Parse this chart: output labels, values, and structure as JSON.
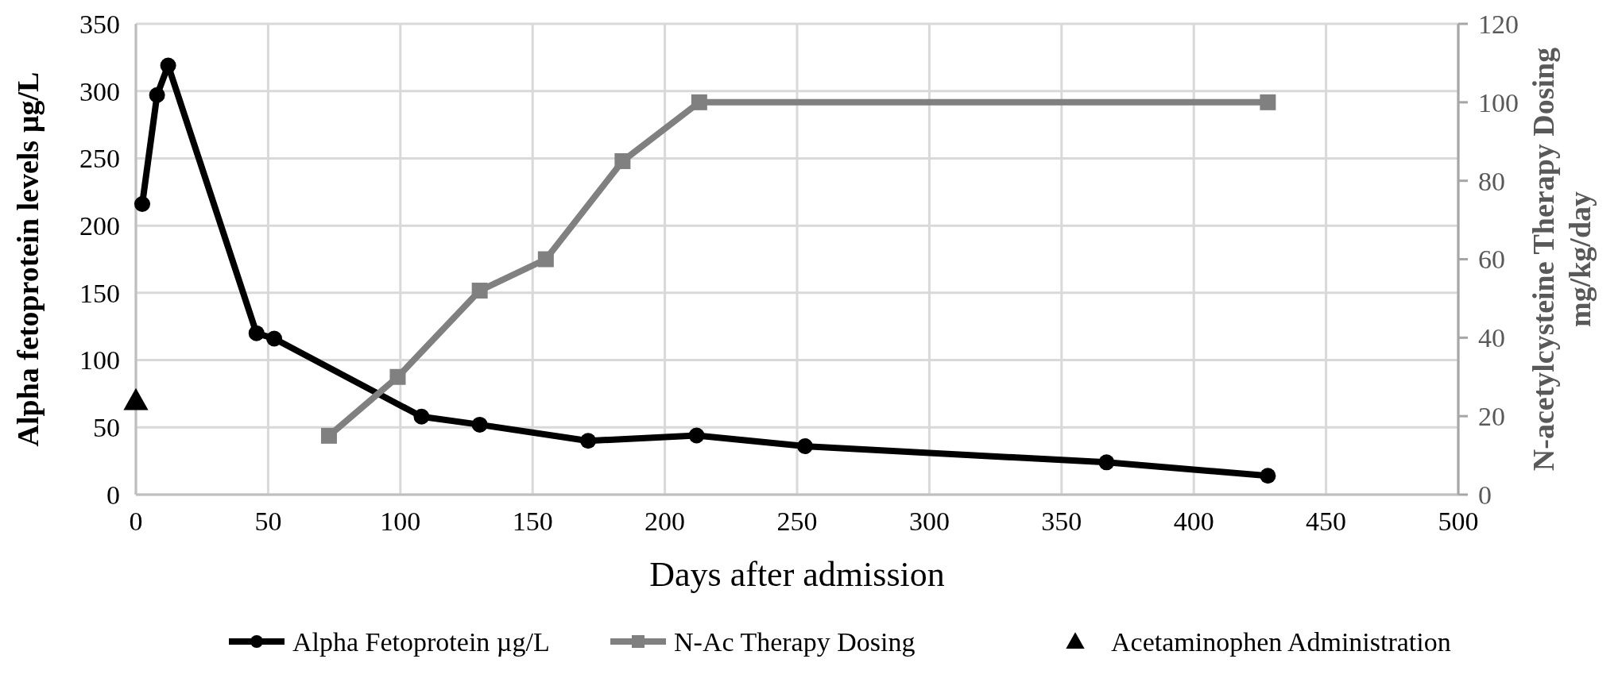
{
  "chart_data": {
    "type": "line",
    "xlabel": "Days after admission",
    "ylabel": "Alpha fetoprotein levels µg/L",
    "y2label": "N-acetylcysteine Therapy Dosing mg/kg/day",
    "xlim": [
      0,
      500
    ],
    "xticks": [
      0,
      50,
      100,
      150,
      200,
      250,
      300,
      350,
      400,
      450,
      500
    ],
    "ylim": [
      0,
      350
    ],
    "yticks": [
      0,
      50,
      100,
      150,
      200,
      250,
      300,
      350
    ],
    "y2lim": [
      0,
      120
    ],
    "y2ticks": [
      0,
      20,
      40,
      60,
      80,
      100,
      120
    ],
    "grid": true,
    "legend": "bottom",
    "series": [
      {
        "name": "Alpha Fetoprotein µg/L",
        "color": "#000000",
        "marker": "circle",
        "x": [
          2.4,
          8,
          12.2,
          45.6,
          52.3,
          108,
          130,
          171,
          212,
          253,
          367,
          428
        ],
        "values": [
          216,
          297,
          319,
          120,
          116,
          58,
          52,
          40,
          44,
          36,
          24,
          14
        ]
      },
      {
        "name": "N-Ac Therapy Dosing",
        "color": "#808080",
        "marker": "square",
        "axis": "y2",
        "x": [
          73,
          99,
          130,
          155,
          184,
          213,
          428
        ],
        "values": [
          15,
          30,
          52,
          60,
          85,
          100,
          100
        ]
      },
      {
        "name": "Acetaminophen Administration",
        "type": "scatter",
        "color": "#000000",
        "marker": "triangle",
        "x": [
          0
        ],
        "values": [
          70
        ]
      }
    ]
  }
}
